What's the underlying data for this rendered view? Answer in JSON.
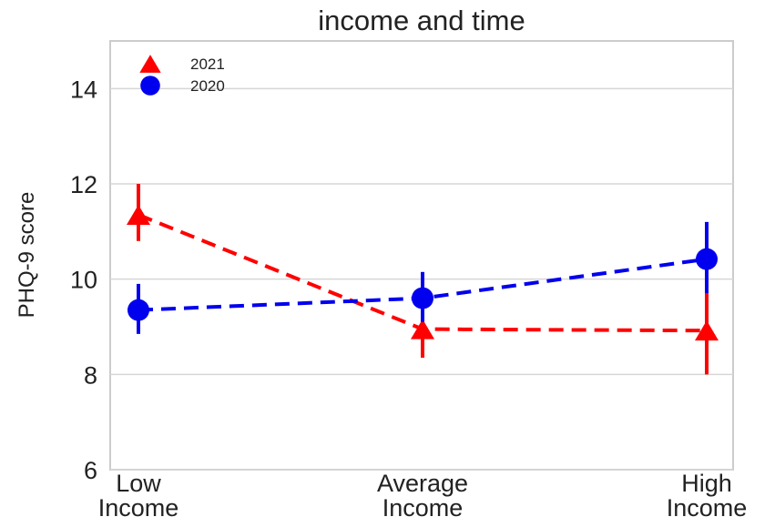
{
  "chart_data": {
    "type": "line",
    "title": "income and time",
    "xlabel": "",
    "ylabel": "PHQ-9 score",
    "categories": [
      [
        "Low",
        "Income"
      ],
      [
        "Average",
        "Income"
      ],
      [
        "High",
        "Income"
      ]
    ],
    "yticks": [
      "6",
      "8",
      "10",
      "12",
      "14"
    ],
    "ylim": [
      6,
      15
    ],
    "grid": "horizontal",
    "legend_position": "top-left",
    "series": [
      {
        "name": "2021",
        "marker": "triangle",
        "color": "#ff0000",
        "values": [
          11.35,
          8.95,
          8.92
        ],
        "err_low": [
          10.8,
          8.35,
          8.0
        ],
        "err_high": [
          12.0,
          9.4,
          9.7
        ]
      },
      {
        "name": "2020",
        "marker": "circle",
        "color": "#0000ee",
        "values": [
          9.35,
          9.6,
          10.42
        ],
        "err_low": [
          8.85,
          9.1,
          9.7
        ],
        "err_high": [
          9.9,
          10.15,
          11.2
        ]
      }
    ]
  }
}
